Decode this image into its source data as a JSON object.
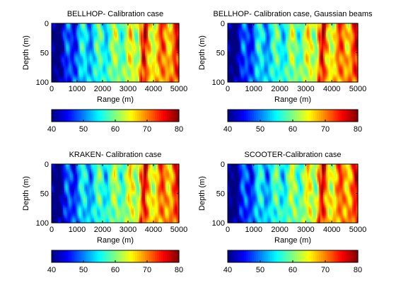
{
  "chart_data": [
    {
      "type": "heatmap",
      "title": "BELLHOP- Calibration  case",
      "xlabel": "Range (m)",
      "ylabel": "Depth (m)",
      "xlim": [
        0,
        5000
      ],
      "ylim": [
        100,
        0
      ],
      "x_ticks": [
        "0",
        "1000",
        "2000",
        "3000",
        "4000",
        "5000"
      ],
      "y_ticks": [
        "0",
        "50",
        "100"
      ],
      "colorbar": {
        "range": [
          40,
          80
        ],
        "ticks": [
          "40",
          "50",
          "60",
          "70",
          "80"
        ],
        "colormap": "jet"
      }
    },
    {
      "type": "heatmap",
      "title": "BELLHOP- Calibration  case, Gaussian beams",
      "xlabel": "Range (m)",
      "ylabel": "Depth (m)",
      "xlim": [
        0,
        5000
      ],
      "ylim": [
        100,
        0
      ],
      "x_ticks": [
        "0",
        "1000",
        "2000",
        "3000",
        "4000",
        "5000"
      ],
      "y_ticks": [
        "0",
        "50",
        "100"
      ],
      "colorbar": {
        "range": [
          40,
          80
        ],
        "ticks": [
          "40",
          "50",
          "60",
          "70",
          "80"
        ],
        "colormap": "jet"
      }
    },
    {
      "type": "heatmap",
      "title": "KRAKEN- Calibration case",
      "xlabel": "Range (m)",
      "ylabel": "Depth (m)",
      "xlim": [
        0,
        5000
      ],
      "ylim": [
        100,
        0
      ],
      "x_ticks": [
        "0",
        "1000",
        "2000",
        "3000",
        "4000",
        "5000"
      ],
      "y_ticks": [
        "0",
        "50",
        "100"
      ],
      "colorbar": {
        "range": [
          40,
          80
        ],
        "ticks": [
          "40",
          "50",
          "60",
          "70",
          "80"
        ],
        "colormap": "jet"
      }
    },
    {
      "type": "heatmap",
      "title": "SCOOTER-Calibration case",
      "xlabel": "Range (m)",
      "ylabel": "Depth (m)",
      "xlim": [
        0,
        5000
      ],
      "ylim": [
        100,
        0
      ],
      "x_ticks": [
        "0",
        "1000",
        "2000",
        "3000",
        "4000",
        "5000"
      ],
      "y_ticks": [
        "0",
        "50",
        "100"
      ],
      "colorbar": {
        "range": [
          40,
          80
        ],
        "ticks": [
          "40",
          "50",
          "60",
          "70",
          "80"
        ],
        "colormap": "jet"
      }
    }
  ]
}
